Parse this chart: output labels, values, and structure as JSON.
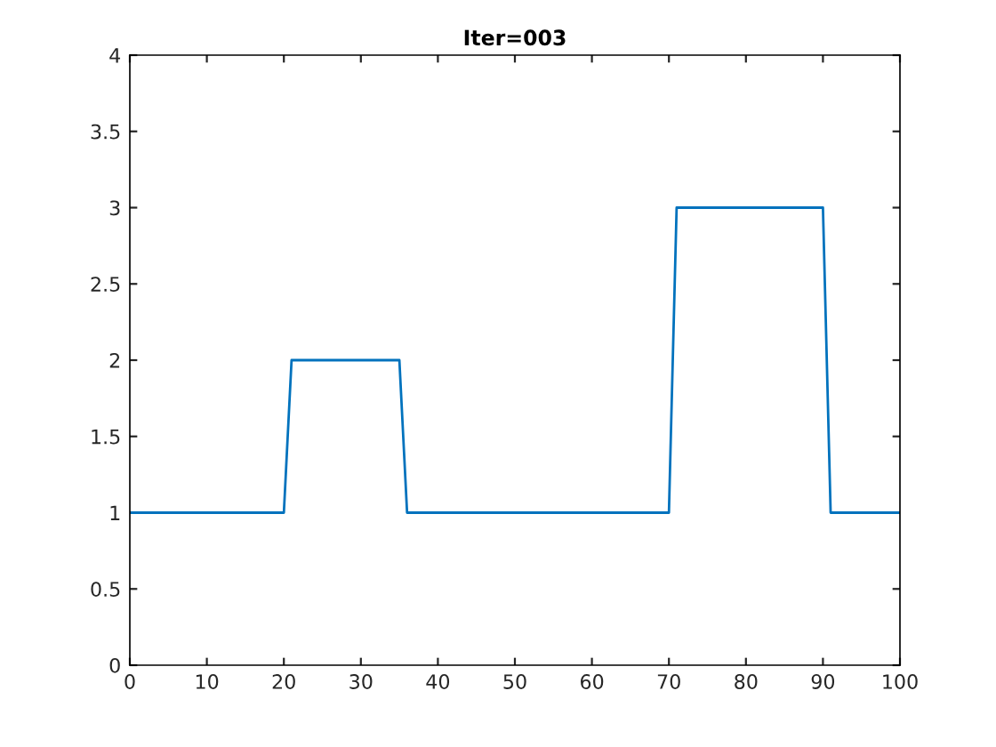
{
  "chart_data": {
    "type": "line",
    "title": "Iter=003",
    "x": [
      0,
      20,
      21,
      35,
      36,
      70,
      71,
      90,
      91,
      100
    ],
    "series": [
      {
        "color": "#0072bd",
        "values": [
          1,
          1,
          2,
          2,
          1,
          1,
          3,
          3,
          1,
          1
        ]
      }
    ],
    "xlim": [
      0,
      100
    ],
    "xticks": [
      0,
      10,
      20,
      30,
      40,
      50,
      60,
      70,
      80,
      90,
      100
    ],
    "ylim": [
      0,
      4
    ],
    "yticks": [
      0,
      0.5,
      1,
      1.5,
      2,
      2.5,
      3,
      3.5,
      4
    ],
    "grid": false,
    "legend": false
  }
}
